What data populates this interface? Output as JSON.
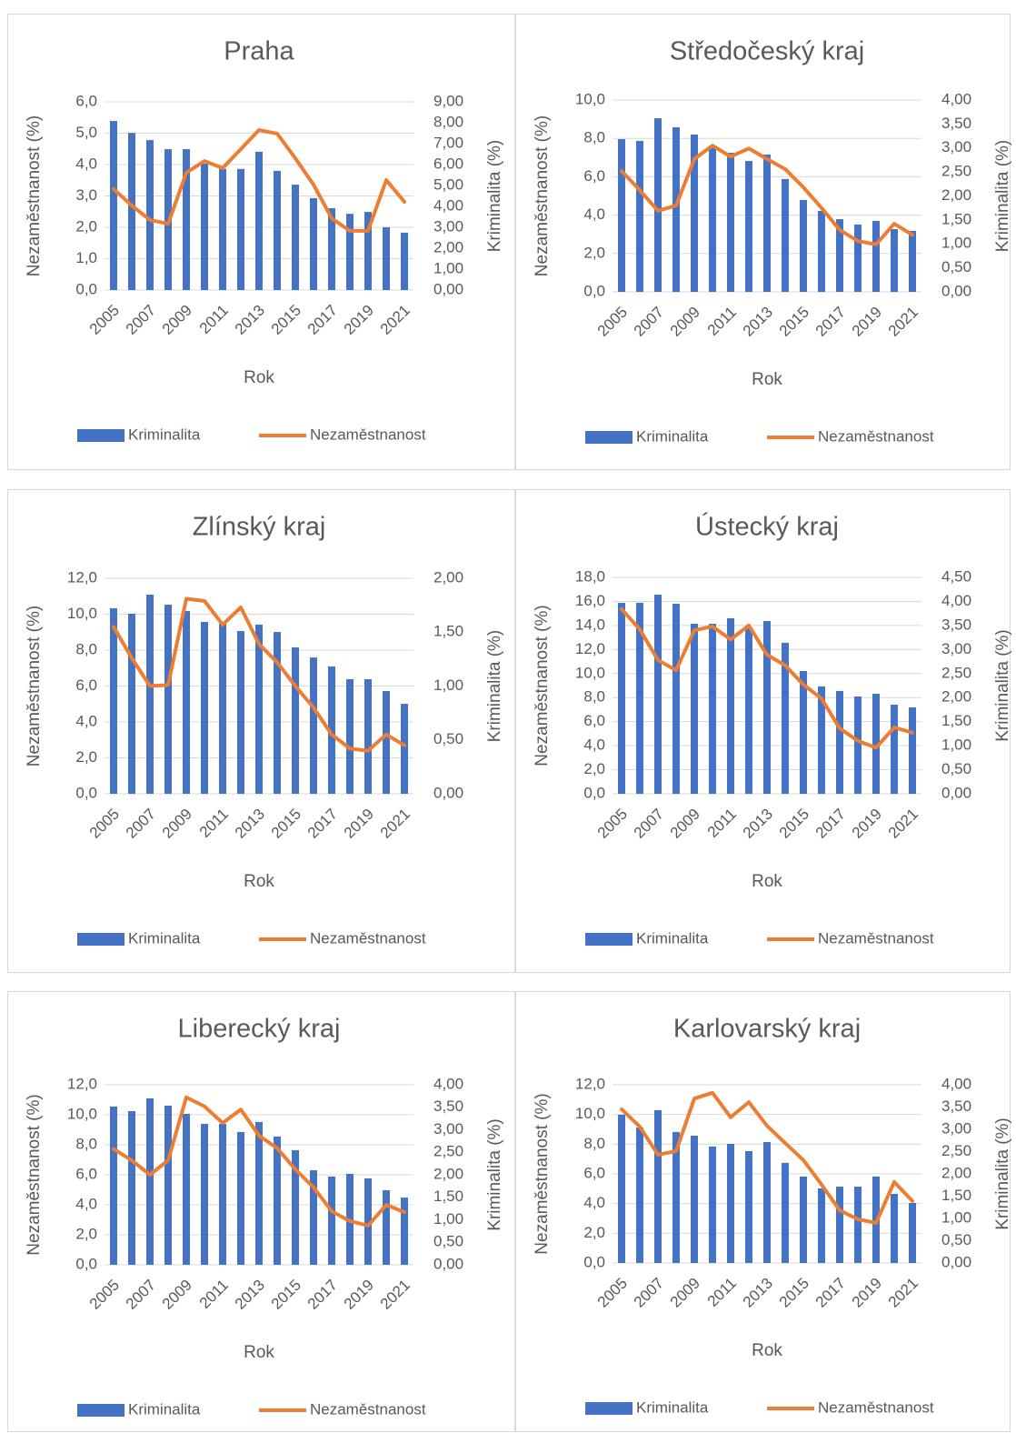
{
  "chart_data": [
    {
      "type": "combo",
      "title": "Praha",
      "x_label": "Rok",
      "y_label": "Nezaměstnanost (%)",
      "y2_label": "Kriminalita (%)",
      "legend": "bottom",
      "grid": true,
      "categories": [
        "2005",
        null,
        "2007",
        null,
        "2009",
        null,
        "2011",
        null,
        "2013",
        null,
        "2015",
        null,
        "2017",
        null,
        "2019",
        null,
        "2021"
      ],
      "series": [
        {
          "name": "Kriminalita",
          "type": "bar",
          "color": "#4472c4",
          "values": [
            5.39,
            5.01,
            4.78,
            4.49,
            4.49,
            4.03,
            3.86,
            3.86,
            4.41,
            3.8,
            3.36,
            2.93,
            2.61,
            2.43,
            2.49,
            2.0,
            1.83
          ]
        },
        {
          "name": "Nezaměstnanost",
          "type": "line",
          "axis": "y2",
          "color": "#ed7d31",
          "values": [
            4.83,
            4.04,
            3.35,
            3.17,
            5.61,
            6.17,
            5.83,
            6.74,
            7.65,
            7.48,
            6.3,
            5.04,
            3.43,
            2.83,
            2.83,
            5.26,
            4.22
          ]
        }
      ],
      "ylim": [
        0,
        6
      ],
      "yticks": [
        {
          "value": 0,
          "label": "0,0"
        },
        {
          "value": 1,
          "label": "1,0"
        },
        {
          "value": 2,
          "label": "2,0"
        },
        {
          "value": 3,
          "label": "3,0"
        },
        {
          "value": 4,
          "label": "4,0"
        },
        {
          "value": 5,
          "label": "5,0"
        },
        {
          "value": 6,
          "label": "6,0"
        }
      ],
      "y2lim": [
        0,
        9
      ],
      "y2ticks": [
        {
          "value": 0,
          "label": "0,00"
        },
        {
          "value": 1,
          "label": "1,00"
        },
        {
          "value": 2,
          "label": "2,00"
        },
        {
          "value": 3,
          "label": "3,00"
        },
        {
          "value": 4,
          "label": "4,00"
        },
        {
          "value": 5,
          "label": "5,00"
        },
        {
          "value": 6,
          "label": "6,00"
        },
        {
          "value": 7,
          "label": "7,00"
        },
        {
          "value": 8,
          "label": "8,00"
        },
        {
          "value": 9,
          "label": "9,00"
        }
      ]
    },
    {
      "type": "combo",
      "title": "Středočeský kraj",
      "x_label": "Rok",
      "y_label": "Nezaměstnanost (%)",
      "y2_label": "Kriminalita (%)",
      "legend": "bottom",
      "grid": true,
      "categories": [
        "2005",
        null,
        "2007",
        null,
        "2009",
        null,
        "2011",
        null,
        "2013",
        null,
        "2015",
        null,
        "2017",
        null,
        "2019",
        null,
        "2021"
      ],
      "series": [
        {
          "name": "Kriminalita",
          "type": "bar",
          "color": "#4472c4",
          "values": [
            7.96,
            7.87,
            9.05,
            8.58,
            8.2,
            7.63,
            7.25,
            6.82,
            7.16,
            5.88,
            4.79,
            4.22,
            3.79,
            3.51,
            3.7,
            3.27,
            3.18
          ]
        },
        {
          "name": "Nezaměstnanost",
          "type": "line",
          "axis": "y2",
          "color": "#ed7d31",
          "values": [
            2.52,
            2.12,
            1.69,
            1.8,
            2.77,
            3.05,
            2.82,
            2.99,
            2.77,
            2.56,
            2.18,
            1.75,
            1.29,
            1.06,
            0.99,
            1.42,
            1.19
          ]
        }
      ],
      "ylim": [
        0,
        10
      ],
      "yticks": [
        {
          "value": 0,
          "label": "0,0"
        },
        {
          "value": 2,
          "label": "2,0"
        },
        {
          "value": 4,
          "label": "4,0"
        },
        {
          "value": 6,
          "label": "6,0"
        },
        {
          "value": 8,
          "label": "8,0"
        },
        {
          "value": 10,
          "label": "10,0"
        }
      ],
      "y2lim": [
        0,
        4
      ],
      "y2ticks": [
        {
          "value": 0,
          "label": "0,00"
        },
        {
          "value": 0.5,
          "label": "0,50"
        },
        {
          "value": 1,
          "label": "1,00"
        },
        {
          "value": 1.5,
          "label": "1,50"
        },
        {
          "value": 2,
          "label": "2,00"
        },
        {
          "value": 2.5,
          "label": "2,50"
        },
        {
          "value": 3,
          "label": "3,00"
        },
        {
          "value": 3.5,
          "label": "3,50"
        },
        {
          "value": 4,
          "label": "4,00"
        }
      ]
    },
    {
      "type": "combo",
      "title": "Zlínský kraj",
      "x_label": "Rok",
      "y_label": "Nezaměstnanost (%)",
      "y2_label": "Kriminalita (%)",
      "legend": "bottom",
      "grid": true,
      "categories": [
        "2005",
        null,
        "2007",
        null,
        "2009",
        null,
        "2011",
        null,
        "2013",
        null,
        "2015",
        null,
        "2017",
        null,
        "2019",
        null,
        "2021"
      ],
      "series": [
        {
          "name": "Kriminalita",
          "type": "bar",
          "color": "#4472c4",
          "values": [
            10.33,
            10.03,
            11.09,
            10.53,
            10.18,
            9.57,
            9.47,
            9.06,
            9.42,
            9.01,
            8.15,
            7.59,
            7.09,
            6.38,
            6.38,
            5.72,
            5.01
          ]
        },
        {
          "name": "Nezaměstnanost",
          "type": "line",
          "axis": "y2",
          "color": "#ed7d31",
          "values": [
            1.55,
            1.26,
            1.0,
            1.01,
            1.81,
            1.79,
            1.57,
            1.73,
            1.39,
            1.22,
            1.0,
            0.8,
            0.55,
            0.42,
            0.4,
            0.55,
            0.45
          ]
        }
      ],
      "ylim": [
        0,
        12
      ],
      "yticks": [
        {
          "value": 0,
          "label": "0,0"
        },
        {
          "value": 2,
          "label": "2,0"
        },
        {
          "value": 4,
          "label": "4,0"
        },
        {
          "value": 6,
          "label": "6,0"
        },
        {
          "value": 8,
          "label": "8,0"
        },
        {
          "value": 10,
          "label": "10,0"
        },
        {
          "value": 12,
          "label": "12,0"
        }
      ],
      "y2lim": [
        0,
        2
      ],
      "y2ticks": [
        {
          "value": 0,
          "label": "0,00"
        },
        {
          "value": 0.5,
          "label": "0,50"
        },
        {
          "value": 1,
          "label": "1,00"
        },
        {
          "value": 1.5,
          "label": "1,50"
        },
        {
          "value": 2,
          "label": "2,00"
        }
      ]
    },
    {
      "type": "combo",
      "title": "Ústecký kraj",
      "x_label": "Rok",
      "y_label": "Nezaměstnanost (%)",
      "y2_label": "Kriminalita (%)",
      "legend": "bottom",
      "grid": true,
      "categories": [
        "2005",
        null,
        "2007",
        null,
        "2009",
        null,
        "2011",
        null,
        "2013",
        null,
        "2015",
        null,
        "2017",
        null,
        "2019",
        null,
        "2021"
      ],
      "series": [
        {
          "name": "Kriminalita",
          "type": "bar",
          "color": "#4472c4",
          "values": [
            15.88,
            15.88,
            16.56,
            15.8,
            14.14,
            14.14,
            14.6,
            13.84,
            14.37,
            12.56,
            10.21,
            8.93,
            8.55,
            8.09,
            8.32,
            7.41,
            7.19
          ]
        },
        {
          "name": "Nezaměstnanost",
          "type": "line",
          "axis": "y2",
          "color": "#ed7d31",
          "values": [
            3.84,
            3.42,
            2.78,
            2.57,
            3.4,
            3.48,
            3.21,
            3.5,
            2.89,
            2.67,
            2.27,
            1.98,
            1.36,
            1.1,
            0.96,
            1.38,
            1.27
          ]
        }
      ],
      "ylim": [
        0,
        18
      ],
      "yticks": [
        {
          "value": 0,
          "label": "0,0"
        },
        {
          "value": 2,
          "label": "2,0"
        },
        {
          "value": 4,
          "label": "4,0"
        },
        {
          "value": 6,
          "label": "6,0"
        },
        {
          "value": 8,
          "label": "8,0"
        },
        {
          "value": 10,
          "label": "10,0"
        },
        {
          "value": 12,
          "label": "12,0"
        },
        {
          "value": 14,
          "label": "14,0"
        },
        {
          "value": 16,
          "label": "16,0"
        },
        {
          "value": 18,
          "label": "18,0"
        }
      ],
      "y2lim": [
        0,
        4.5
      ],
      "y2ticks": [
        {
          "value": 0,
          "label": "0,00"
        },
        {
          "value": 0.5,
          "label": "0,50"
        },
        {
          "value": 1,
          "label": "1,00"
        },
        {
          "value": 1.5,
          "label": "1,50"
        },
        {
          "value": 2,
          "label": "2,00"
        },
        {
          "value": 2.5,
          "label": "2,50"
        },
        {
          "value": 3,
          "label": "3,00"
        },
        {
          "value": 3.5,
          "label": "3,50"
        },
        {
          "value": 4,
          "label": "4,00"
        },
        {
          "value": 4.5,
          "label": "4,50"
        }
      ]
    },
    {
      "type": "combo",
      "title": "Liberecký kraj",
      "x_label": "Rok",
      "y_label": "Nezaměstnanost (%)",
      "y2_label": "Kriminalita (%)",
      "legend": "bottom",
      "grid": true,
      "categories": [
        "2005",
        null,
        "2007",
        null,
        "2009",
        null,
        "2011",
        null,
        "2013",
        null,
        "2015",
        null,
        "2017",
        null,
        "2019",
        null,
        "2021"
      ],
      "series": [
        {
          "name": "Kriminalita",
          "type": "bar",
          "color": "#4472c4",
          "values": [
            10.55,
            10.24,
            11.09,
            10.61,
            10.06,
            9.39,
            9.39,
            8.85,
            9.52,
            8.55,
            7.64,
            6.3,
            5.88,
            6.06,
            5.76,
            4.97,
            4.48
          ]
        },
        {
          "name": "Nezaměstnanost",
          "type": "line",
          "axis": "y2",
          "color": "#ed7d31",
          "values": [
            2.57,
            2.32,
            2.0,
            2.32,
            3.72,
            3.52,
            3.15,
            3.45,
            2.87,
            2.59,
            2.12,
            1.72,
            1.19,
            0.97,
            0.87,
            1.33,
            1.17
          ]
        }
      ],
      "ylim": [
        0,
        12
      ],
      "yticks": [
        {
          "value": 0,
          "label": "0,0"
        },
        {
          "value": 2,
          "label": "2,0"
        },
        {
          "value": 4,
          "label": "4,0"
        },
        {
          "value": 6,
          "label": "6,0"
        },
        {
          "value": 8,
          "label": "8,0"
        },
        {
          "value": 10,
          "label": "10,0"
        },
        {
          "value": 12,
          "label": "12,0"
        }
      ],
      "y2lim": [
        0,
        4
      ],
      "y2ticks": [
        {
          "value": 0,
          "label": "0,00"
        },
        {
          "value": 0.5,
          "label": "0,50"
        },
        {
          "value": 1,
          "label": "1,00"
        },
        {
          "value": 1.5,
          "label": "1,50"
        },
        {
          "value": 2,
          "label": "2,00"
        },
        {
          "value": 2.5,
          "label": "2,50"
        },
        {
          "value": 3,
          "label": "3,00"
        },
        {
          "value": 3.5,
          "label": "3,50"
        },
        {
          "value": 4,
          "label": "4,00"
        }
      ]
    },
    {
      "type": "combo",
      "title": "Karlovarský kraj",
      "x_label": "Rok",
      "y_label": "Nezaměstnanost (%)",
      "y2_label": "Kriminalita (%)",
      "legend": "bottom",
      "grid": true,
      "categories": [
        "2005",
        null,
        "2007",
        null,
        "2009",
        null,
        "2011",
        null,
        "2013",
        null,
        "2015",
        null,
        "2017",
        null,
        "2019",
        null,
        "2021"
      ],
      "series": [
        {
          "name": "Kriminalita",
          "type": "bar",
          "color": "#4472c4",
          "values": [
            9.98,
            9.12,
            10.29,
            8.82,
            8.57,
            7.84,
            8.02,
            7.53,
            8.14,
            6.74,
            5.82,
            5.02,
            5.14,
            5.14,
            5.82,
            4.65,
            4.04
          ]
        },
        {
          "name": "Nezaměstnanost",
          "type": "line",
          "axis": "y2",
          "color": "#ed7d31",
          "values": [
            3.45,
            3.06,
            2.43,
            2.51,
            3.69,
            3.82,
            3.27,
            3.61,
            3.08,
            2.69,
            2.31,
            1.76,
            1.18,
            0.98,
            0.9,
            1.82,
            1.39
          ]
        }
      ],
      "ylim": [
        0,
        12
      ],
      "yticks": [
        {
          "value": 0,
          "label": "0,0"
        },
        {
          "value": 2,
          "label": "2,0"
        },
        {
          "value": 4,
          "label": "4,0"
        },
        {
          "value": 6,
          "label": "6,0"
        },
        {
          "value": 8,
          "label": "8,0"
        },
        {
          "value": 10,
          "label": "10,0"
        },
        {
          "value": 12,
          "label": "12,0"
        }
      ],
      "y2lim": [
        0,
        4
      ],
      "y2ticks": [
        {
          "value": 0,
          "label": "0,00"
        },
        {
          "value": 0.5,
          "label": "0,50"
        },
        {
          "value": 1,
          "label": "1,00"
        },
        {
          "value": 1.5,
          "label": "1,50"
        },
        {
          "value": 2,
          "label": "2,00"
        },
        {
          "value": 2.5,
          "label": "2,50"
        },
        {
          "value": 3,
          "label": "3,00"
        },
        {
          "value": 3.5,
          "label": "3,50"
        },
        {
          "value": 4,
          "label": "4,00"
        }
      ]
    }
  ]
}
